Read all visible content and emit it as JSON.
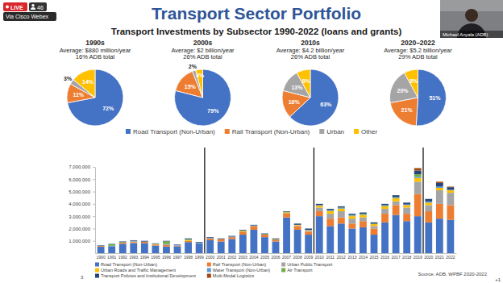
{
  "overlay": {
    "live": "LIVE",
    "viewers": "46",
    "via": "Via Cisco Webex",
    "speaker": "Michael Anyala (ADB)",
    "more": "+1"
  },
  "slide": {
    "title": "Transport Sector Portfolio",
    "subtitle": "Transport Investments by Subsector 1990-2022 (loans and grants)",
    "page_number": "3",
    "source": "Source: ADB, WPBF 2020-2022"
  },
  "chart_data": [
    {
      "type": "pie",
      "title": "1990s",
      "subtitle": "Average: $880 million/year",
      "annotations": [
        "16% ADB total"
      ],
      "categories": [
        "Road Transport (Non-Urban)",
        "Rail Transport (Non-Urban)",
        "Urban",
        "Other"
      ],
      "values": [
        72,
        11,
        3,
        14
      ],
      "value_labels": [
        "72%",
        "11%",
        "3%",
        "14%"
      ],
      "colors": [
        "#4472c4",
        "#ed7d31",
        "#a5a5a5",
        "#ffc000"
      ],
      "data_labels": true,
      "legend": "bottom"
    },
    {
      "type": "pie",
      "title": "2000s",
      "subtitle": "Average: $2 billion/year",
      "annotations": [
        "26% ADB total"
      ],
      "values": [
        79,
        15,
        2,
        4
      ],
      "value_labels": [
        "79%",
        "15%",
        "2%",
        "4%"
      ],
      "colors": [
        "#4472c4",
        "#ed7d31",
        "#a5a5a5",
        "#ffc000"
      ],
      "data_labels": true
    },
    {
      "type": "pie",
      "title": "2010s",
      "subtitle": "Average: $4.2 billion/year",
      "annotations": [
        "26% ADB total"
      ],
      "values": [
        63,
        16,
        13,
        8
      ],
      "value_labels": [
        "63%",
        "16%",
        "13%",
        "8%"
      ],
      "colors": [
        "#4472c4",
        "#ed7d31",
        "#a5a5a5",
        "#ffc000"
      ],
      "data_labels": true
    },
    {
      "type": "pie",
      "title": "2020–2022",
      "subtitle": "Average: $5.2 billion/year",
      "annotations": [
        "29% ADB total"
      ],
      "values": [
        51,
        21,
        20,
        8
      ],
      "value_labels": [
        "51%",
        "21%",
        "20%",
        "8%"
      ],
      "colors": [
        "#4472c4",
        "#ed7d31",
        "#a5a5a5",
        "#ffc000"
      ],
      "data_labels": true
    },
    {
      "type": "bar",
      "stacked": true,
      "legend": "bottom",
      "categories": [
        "1990",
        "1991",
        "1992",
        "1993",
        "1994",
        "1995",
        "1996",
        "1997",
        "1998",
        "1999",
        "2000",
        "2001",
        "2002",
        "2003",
        "2004",
        "2005",
        "2006",
        "2007",
        "2008",
        "2009",
        "2010",
        "2011",
        "2012",
        "2013",
        "2014",
        "2015",
        "2016",
        "2017",
        "2018",
        "2019",
        "2020",
        "2021",
        "2022"
      ],
      "series": [
        {
          "name": "Road Transport (Non-Urban)",
          "color": "#4472c4",
          "values": [
            520000,
            560000,
            760000,
            820000,
            820000,
            620000,
            540000,
            560000,
            900000,
            780000,
            1050000,
            950000,
            1150000,
            1500000,
            1900000,
            1300000,
            950000,
            2900000,
            1900000,
            1500000,
            3000000,
            2200000,
            2400000,
            2000000,
            2100000,
            1500000,
            2500000,
            3100000,
            2600000,
            3000000,
            2500000,
            2800000,
            2700000
          ]
        },
        {
          "name": "Rail Transport (Non-Urban)",
          "color": "#ed7d31",
          "values": [
            60000,
            0,
            100000,
            80000,
            120000,
            80000,
            150000,
            60000,
            100000,
            0,
            150000,
            200000,
            150000,
            250000,
            300000,
            200000,
            150000,
            350000,
            300000,
            250000,
            400000,
            600000,
            500000,
            400000,
            500000,
            500000,
            700000,
            800000,
            600000,
            1800000,
            900000,
            1200000,
            1200000
          ]
        },
        {
          "name": "Urban Public Transport",
          "color": "#a5a5a5",
          "values": [
            0,
            0,
            0,
            0,
            0,
            0,
            0,
            0,
            0,
            0,
            0,
            0,
            0,
            0,
            0,
            0,
            0,
            0,
            50000,
            50000,
            300000,
            400000,
            500000,
            400000,
            300000,
            200000,
            400000,
            300000,
            500000,
            1000000,
            500000,
            1100000,
            1000000
          ]
        },
        {
          "name": "Urban Roads and Traffic Management",
          "color": "#ffc000",
          "values": [
            20000,
            0,
            0,
            40000,
            0,
            30000,
            0,
            0,
            60000,
            20000,
            0,
            0,
            0,
            50000,
            0,
            0,
            0,
            50000,
            50000,
            50000,
            150000,
            200000,
            200000,
            200000,
            200000,
            150000,
            200000,
            250000,
            200000,
            300000,
            200000,
            200000,
            200000
          ]
        },
        {
          "name": "Water Transport (Non-Urban)",
          "color": "#5b9bd5",
          "values": [
            20000,
            40000,
            0,
            60000,
            0,
            0,
            50000,
            40000,
            0,
            50000,
            50000,
            0,
            50000,
            0,
            50000,
            0,
            0,
            0,
            0,
            50000,
            50000,
            50000,
            50000,
            50000,
            50000,
            0,
            50000,
            50000,
            50000,
            100000,
            100000,
            100000,
            50000
          ]
        },
        {
          "name": "Air Transport",
          "color": "#70ad47",
          "values": [
            0,
            120000,
            50000,
            0,
            0,
            40000,
            220000,
            0,
            80000,
            0,
            0,
            0,
            0,
            50000,
            0,
            50000,
            50000,
            50000,
            0,
            0,
            0,
            50000,
            50000,
            50000,
            50000,
            50000,
            50000,
            50000,
            0,
            200000,
            0,
            0,
            0
          ]
        },
        {
          "name": "Transport Policies and Institutional Development",
          "color": "#264478",
          "values": [
            30000,
            30000,
            40000,
            50000,
            60000,
            30000,
            40000,
            40000,
            60000,
            50000,
            50000,
            50000,
            50000,
            50000,
            50000,
            50000,
            50000,
            50000,
            100000,
            100000,
            100000,
            100000,
            100000,
            100000,
            100000,
            100000,
            100000,
            150000,
            150000,
            300000,
            200000,
            300000,
            200000
          ]
        },
        {
          "name": "Multi-Modal Logistics",
          "color": "#9e480e",
          "values": [
            0,
            0,
            0,
            0,
            0,
            0,
            0,
            0,
            0,
            0,
            0,
            0,
            0,
            0,
            0,
            0,
            0,
            0,
            0,
            0,
            0,
            0,
            0,
            0,
            0,
            0,
            0,
            0,
            0,
            200000,
            0,
            100000,
            50000
          ]
        }
      ],
      "ylim": [
        0,
        7000000
      ],
      "yticks": [
        {
          "value": 1000000,
          "label": "1,000,000"
        },
        {
          "value": 2000000,
          "label": "2,000,000"
        },
        {
          "value": 3000000,
          "label": "3,000,000"
        },
        {
          "value": 4000000,
          "label": "4,000,000"
        },
        {
          "value": 5000000,
          "label": "5,000,000"
        },
        {
          "value": 6000000,
          "label": "6,000,000"
        },
        {
          "value": 7000000,
          "label": "7,000,000"
        }
      ]
    }
  ]
}
